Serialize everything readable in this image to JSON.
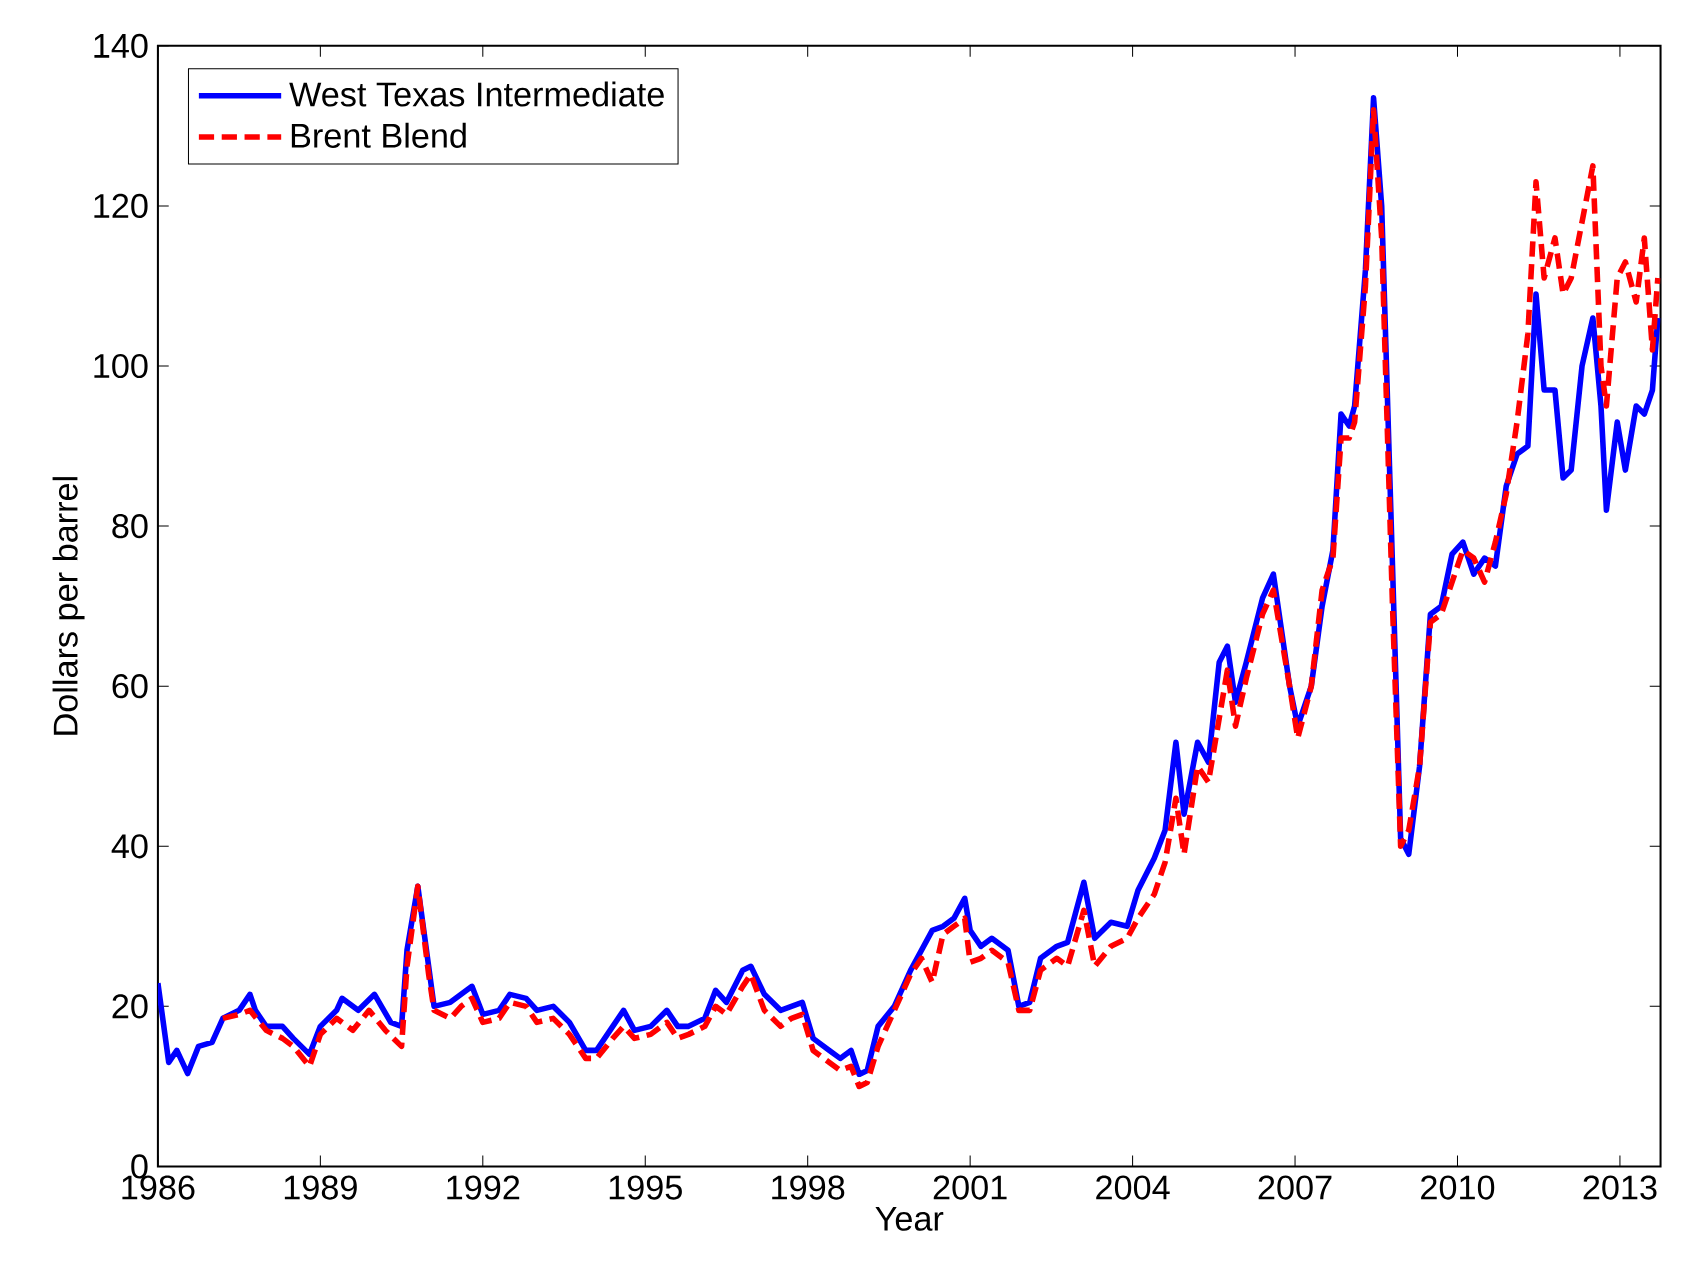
{
  "chart_data": {
    "type": "line",
    "xlabel": "Year",
    "ylabel": "Dollars per barrel",
    "xlim": [
      1986,
      2013.75
    ],
    "xticks": [
      1986,
      1989,
      1992,
      1995,
      1998,
      2001,
      2004,
      2007,
      2010,
      2013
    ],
    "ylim": [
      0,
      140
    ],
    "yticks": [
      0,
      20,
      40,
      60,
      80,
      100,
      120,
      140
    ],
    "legend": "top left",
    "grid": false,
    "marker": "none",
    "series": [
      {
        "name": "West Texas Intermediate",
        "color": "#0000ff",
        "line_style": "solid",
        "x": [
          1986.0,
          1986.2,
          1986.35,
          1986.55,
          1986.75,
          1987.0,
          1987.2,
          1987.5,
          1987.7,
          1987.8,
          1988.0,
          1988.3,
          1988.5,
          1988.8,
          1989.0,
          1989.3,
          1989.4,
          1989.7,
          1990.0,
          1990.3,
          1990.5,
          1990.6,
          1990.8,
          1991.0,
          1991.1,
          1991.4,
          1991.6,
          1991.8,
          1992.0,
          1992.3,
          1992.5,
          1992.8,
          1993.0,
          1993.3,
          1993.6,
          1993.9,
          1994.1,
          1994.4,
          1994.6,
          1994.8,
          1995.1,
          1995.4,
          1995.6,
          1995.8,
          1996.1,
          1996.3,
          1996.5,
          1996.8,
          1996.95,
          1997.2,
          1997.5,
          1997.7,
          1997.9,
          1998.1,
          1998.4,
          1998.6,
          1998.8,
          1998.95,
          1999.1,
          1999.3,
          1999.6,
          1999.9,
          2000.1,
          2000.3,
          2000.5,
          2000.7,
          2000.9,
          2001.0,
          2001.2,
          2001.4,
          2001.7,
          2001.9,
          2002.1,
          2002.3,
          2002.6,
          2002.8,
          2003.1,
          2003.3,
          2003.6,
          2003.9,
          2004.1,
          2004.4,
          2004.6,
          2004.8,
          2004.95,
          2005.2,
          2005.4,
          2005.6,
          2005.75,
          2005.9,
          2006.1,
          2006.4,
          2006.6,
          2006.9,
          2007.05,
          2007.3,
          2007.5,
          2007.7,
          2007.85,
          2008.0,
          2008.1,
          2008.3,
          2008.45,
          2008.6,
          2008.8,
          2008.95,
          2009.1,
          2009.3,
          2009.5,
          2009.7,
          2009.9,
          2010.1,
          2010.3,
          2010.5,
          2010.7,
          2010.9,
          2011.1,
          2011.3,
          2011.45,
          2011.6,
          2011.8,
          2011.95,
          2012.1,
          2012.3,
          2012.5,
          2012.65,
          2012.75,
          2012.95,
          2013.1,
          2013.3,
          2013.45,
          2013.6,
          2013.7
        ],
        "values": [
          22.9,
          13,
          14.5,
          11.6,
          15,
          15.5,
          18.5,
          19.5,
          21.5,
          19.5,
          17.5,
          17.5,
          16,
          14,
          17.5,
          19.5,
          21,
          19.5,
          21.5,
          18,
          17.5,
          27,
          35,
          25,
          20,
          20.5,
          21.5,
          22.5,
          19,
          19.5,
          21.5,
          21,
          19.5,
          20,
          18,
          14.5,
          14.5,
          17.5,
          19.5,
          17,
          17.5,
          19.5,
          17.5,
          17.5,
          18.5,
          22,
          20.5,
          24.5,
          25,
          21.5,
          19.5,
          20,
          20.5,
          16,
          14.5,
          13.5,
          14.5,
          11.5,
          12,
          17.5,
          20,
          24.5,
          27,
          29.5,
          30,
          31,
          33.5,
          29.5,
          27.5,
          28.5,
          27,
          20,
          20.5,
          26,
          27.5,
          28,
          35.5,
          28.5,
          30.5,
          30,
          34.5,
          38.5,
          42,
          53,
          44,
          53,
          50.5,
          63,
          65,
          58,
          63,
          71,
          74,
          60,
          55,
          60,
          70,
          77,
          94,
          92.5,
          95,
          112,
          133.5,
          120,
          75,
          41,
          39,
          50,
          69,
          70,
          76.5,
          78,
          74,
          76,
          75,
          85,
          89,
          90,
          109,
          97,
          97,
          86,
          87,
          100,
          106,
          95,
          82,
          93,
          87,
          95,
          94,
          97,
          106
        ]
      },
      {
        "name": "Brent Blend",
        "color": "#ff0000",
        "line_style": "dashed",
        "x": [
          1987.2,
          1987.5,
          1987.7,
          1988.0,
          1988.3,
          1988.5,
          1988.8,
          1989.0,
          1989.3,
          1989.6,
          1989.9,
          1990.2,
          1990.5,
          1990.6,
          1990.8,
          1991.0,
          1991.1,
          1991.4,
          1991.6,
          1991.8,
          1992.0,
          1992.3,
          1992.5,
          1992.8,
          1993.0,
          1993.3,
          1993.6,
          1993.9,
          1994.1,
          1994.4,
          1994.6,
          1994.8,
          1995.1,
          1995.4,
          1995.6,
          1995.8,
          1996.1,
          1996.3,
          1996.5,
          1996.8,
          1996.95,
          1997.2,
          1997.5,
          1997.7,
          1997.9,
          1998.1,
          1998.4,
          1998.6,
          1998.8,
          1998.95,
          1999.1,
          1999.3,
          1999.6,
          1999.9,
          2000.1,
          2000.3,
          2000.5,
          2000.7,
          2000.9,
          2001.0,
          2001.2,
          2001.4,
          2001.7,
          2001.9,
          2002.1,
          2002.3,
          2002.6,
          2002.8,
          2003.1,
          2003.3,
          2003.6,
          2003.9,
          2004.1,
          2004.4,
          2004.6,
          2004.8,
          2004.95,
          2005.2,
          2005.4,
          2005.6,
          2005.75,
          2005.9,
          2006.1,
          2006.4,
          2006.6,
          2006.9,
          2007.05,
          2007.3,
          2007.5,
          2007.7,
          2007.85,
          2008.0,
          2008.1,
          2008.3,
          2008.45,
          2008.6,
          2008.8,
          2008.95,
          2009.1,
          2009.3,
          2009.5,
          2009.7,
          2009.9,
          2010.1,
          2010.3,
          2010.5,
          2010.7,
          2010.9,
          2011.1,
          2011.3,
          2011.45,
          2011.6,
          2011.8,
          2011.95,
          2012.1,
          2012.3,
          2012.5,
          2012.65,
          2012.75,
          2012.95,
          2013.1,
          2013.3,
          2013.45,
          2013.6,
          2013.7
        ],
        "values": [
          18.5,
          19,
          19.5,
          17,
          16,
          15,
          12.5,
          16.5,
          18.5,
          17,
          19.5,
          17,
          15,
          25,
          35,
          24,
          19.5,
          18.5,
          20,
          21,
          18,
          18.5,
          20.5,
          20,
          18,
          18.5,
          16.5,
          13.5,
          13.5,
          16,
          17.5,
          16,
          16.5,
          18,
          16,
          16.5,
          17.5,
          20,
          19,
          22.5,
          24,
          19.5,
          17.5,
          18.5,
          19,
          14.5,
          13,
          12,
          12.5,
          10,
          10.5,
          15,
          19.5,
          24,
          26,
          23,
          29,
          30,
          31,
          25.5,
          26,
          27,
          25.5,
          19.5,
          19.5,
          24.5,
          26,
          25,
          32,
          25,
          27.5,
          28.5,
          31,
          34,
          38,
          46,
          39,
          50,
          48,
          56,
          62,
          55,
          61,
          69,
          72,
          60,
          53.5,
          60,
          72,
          76,
          91,
          91,
          93,
          110,
          132,
          116,
          70,
          40,
          42,
          50,
          68,
          69,
          73,
          77,
          76,
          73,
          78,
          84,
          93,
          104,
          123,
          111,
          116,
          109,
          111,
          118,
          125,
          100,
          95,
          111,
          113,
          108,
          116,
          102,
          111
        ]
      }
    ]
  }
}
